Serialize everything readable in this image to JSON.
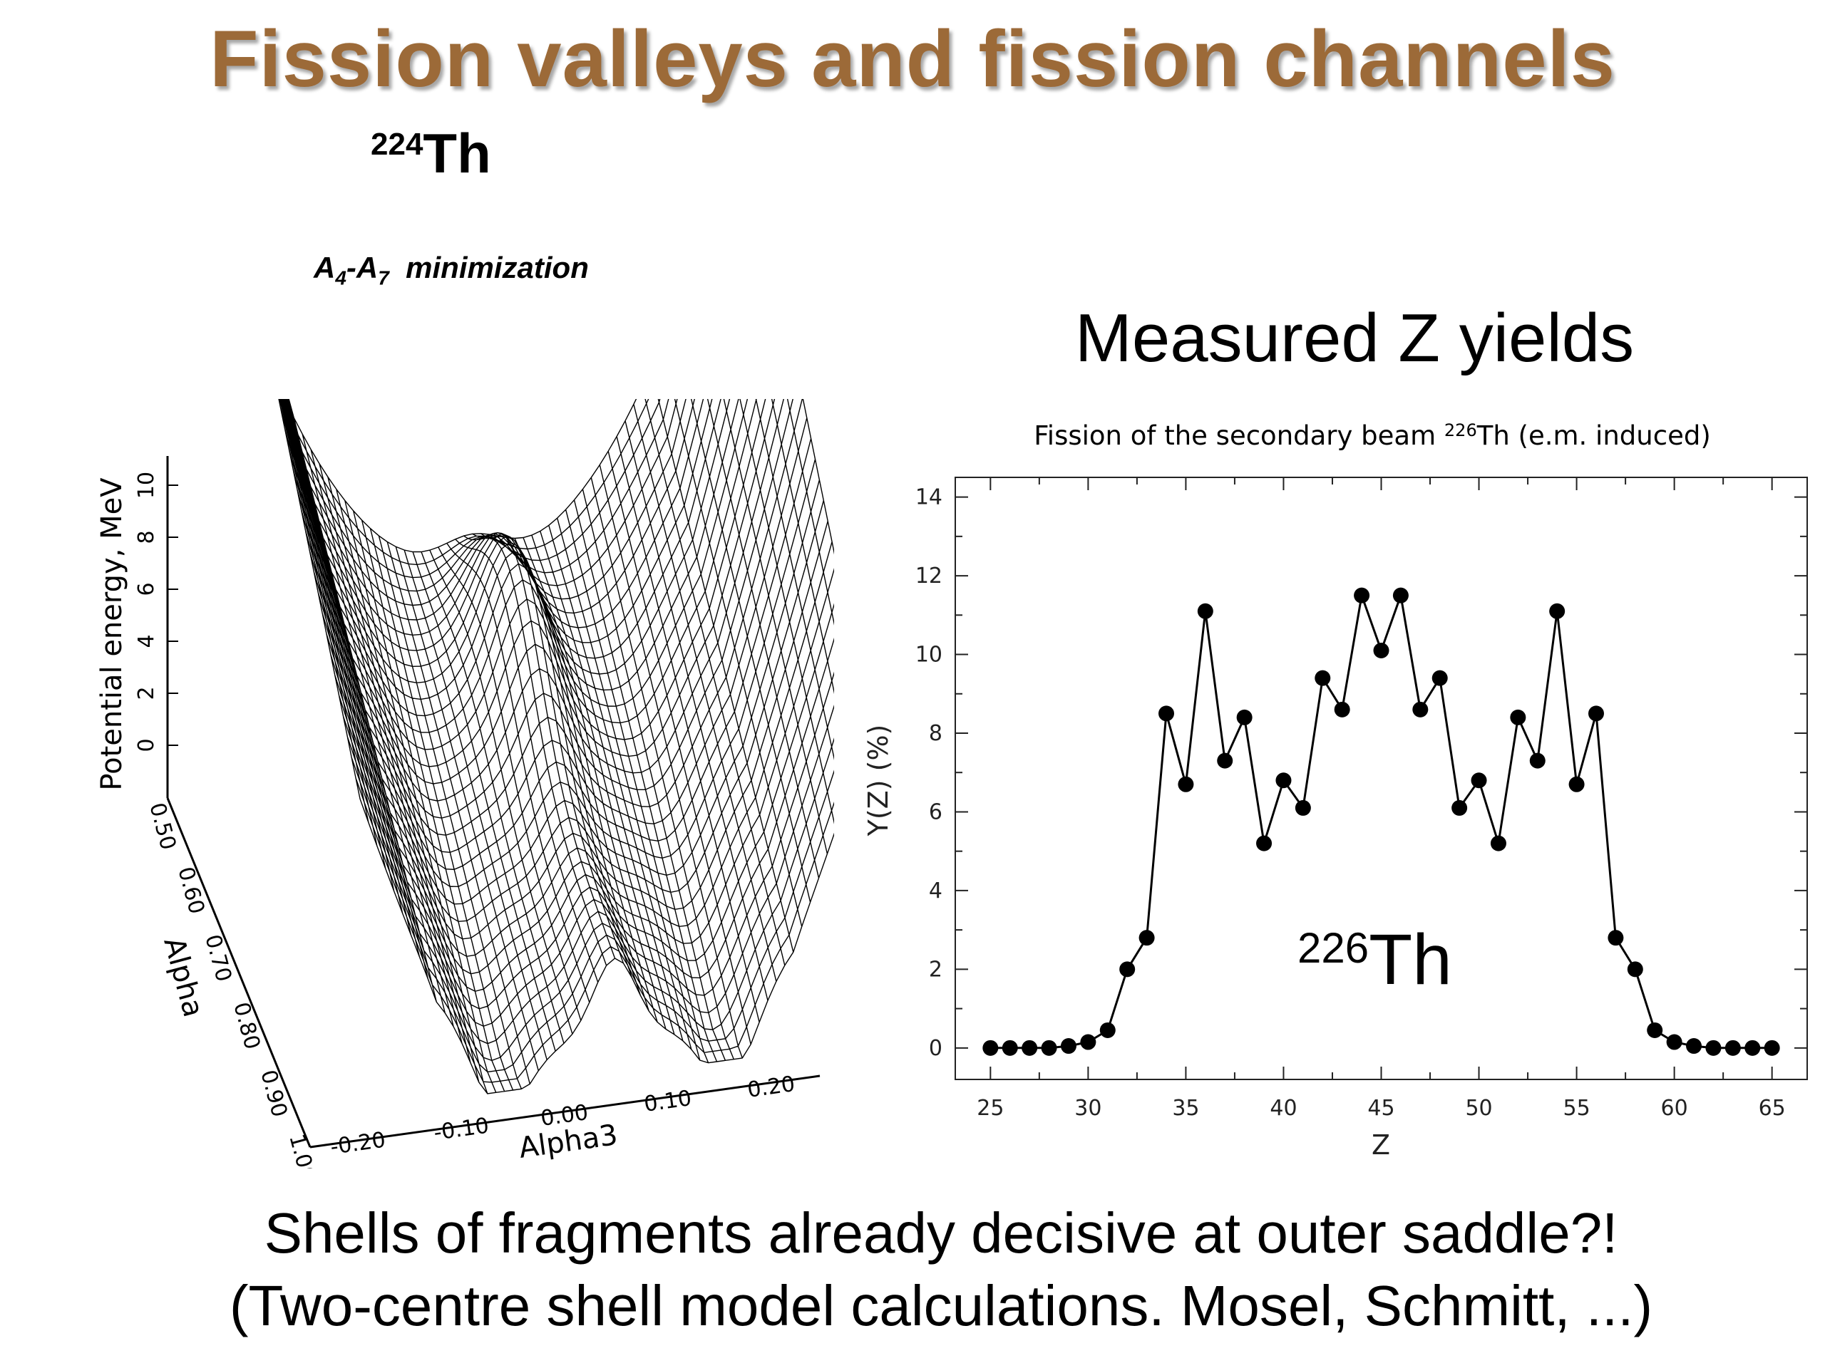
{
  "slide": {
    "title": "Fission valleys and fission channels",
    "left_figure": {
      "nucleus_mass": "224",
      "nucleus_symbol": "Th",
      "minimization_a": "A",
      "minimization_a_sub": "4",
      "minimization_dash": "-A",
      "minimization_b_sub": "7",
      "minimization_text": "minimization",
      "z_axis_label": "Potential energy, MeV",
      "z_ticks": [
        "0",
        "2",
        "4",
        "6",
        "8",
        "10"
      ],
      "alpha_axis_label": "Alpha",
      "alpha_ticks": [
        "0.50",
        "0.60",
        "0.70",
        "0.80",
        "0.90",
        "1.00"
      ],
      "alpha3_axis_label": "Alpha3",
      "alpha3_ticks": [
        "-0.20",
        "-0.10",
        "0.00",
        "0.10",
        "0.20"
      ]
    },
    "right_heading": "Measured Z yields",
    "caption_line1": "Shells of fragments already decisive at outer saddle?!",
    "caption_line2": "(Two-centre shell model calculations. Mosel, Schmitt, ...)"
  },
  "chart_data": {
    "type": "line",
    "title_prefix": "Fission of the secondary beam ",
    "title_mass": "226",
    "title_suffix": "Th (e.m. induced)",
    "xlabel": "Z",
    "ylabel": "Y(Z) (%)",
    "xlim": [
      23.2,
      66.8
    ],
    "ylim": [
      -0.8,
      14.5
    ],
    "xticks": [
      25,
      30,
      35,
      40,
      45,
      50,
      55,
      60,
      65
    ],
    "yticks": [
      0,
      2,
      4,
      6,
      8,
      10,
      12,
      14
    ],
    "annotation_mass": "226",
    "annotation_symbol": "Th",
    "marker": "filled-circle",
    "color": "#000000",
    "x": [
      25,
      26,
      27,
      28,
      29,
      30,
      31,
      32,
      33,
      34,
      35,
      36,
      37,
      38,
      39,
      40,
      41,
      42,
      43,
      44,
      45,
      46,
      47,
      48,
      49,
      50,
      51,
      52,
      53,
      54,
      55,
      56,
      57,
      58,
      59,
      60,
      61,
      62,
      63,
      64,
      65
    ],
    "y": [
      0.0,
      0.0,
      0.0,
      0.0,
      0.05,
      0.15,
      0.45,
      2.0,
      2.8,
      8.5,
      6.7,
      11.1,
      7.3,
      8.4,
      5.2,
      6.8,
      6.1,
      9.4,
      8.6,
      11.5,
      10.1,
      11.5,
      8.6,
      9.4,
      6.1,
      6.8,
      5.2,
      8.4,
      7.3,
      11.1,
      6.7,
      8.5,
      2.8,
      2.0,
      0.45,
      0.15,
      0.05,
      0.0,
      0.0,
      0.0,
      0.0
    ]
  }
}
